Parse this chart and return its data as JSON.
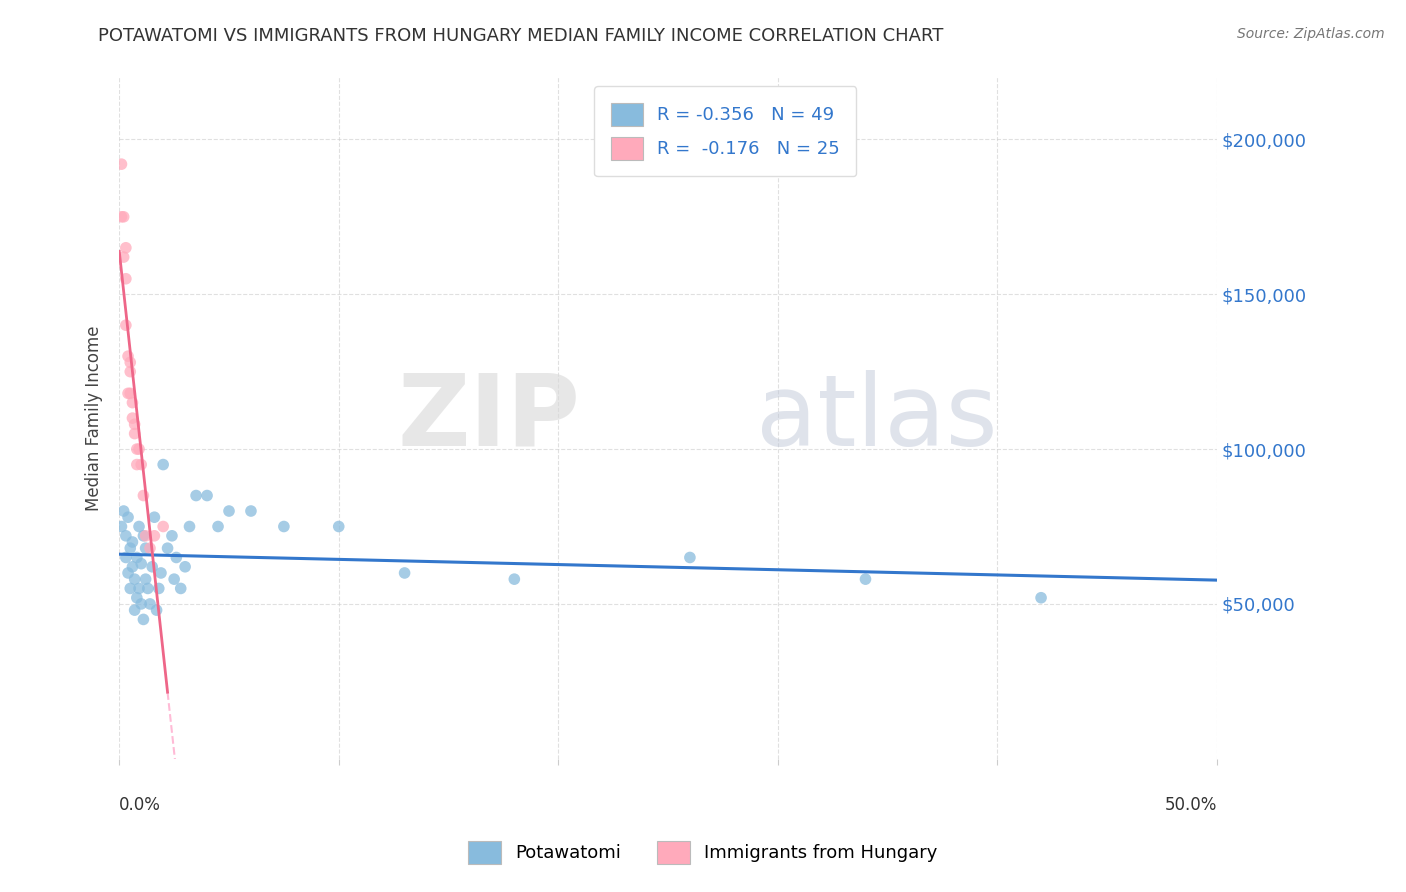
{
  "title": "POTAWATOMI VS IMMIGRANTS FROM HUNGARY MEDIAN FAMILY INCOME CORRELATION CHART",
  "source": "Source: ZipAtlas.com",
  "ylabel": "Median Family Income",
  "ytick_labels": [
    "$50,000",
    "$100,000",
    "$150,000",
    "$200,000"
  ],
  "ytick_values": [
    50000,
    100000,
    150000,
    200000
  ],
  "legend_blue_r": "R = -0.356",
  "legend_blue_n": "N = 49",
  "legend_pink_r": "R = -0.176",
  "legend_pink_n": "N = 25",
  "legend_blue_label": "Potawatomi",
  "legend_pink_label": "Immigrants from Hungary",
  "blue_color": "#88bbdd",
  "pink_color": "#ffaabb",
  "blue_line_color": "#3377cc",
  "pink_line_color": "#ee6688",
  "pink_dash_color": "#ffaacc",
  "watermark_zip": "ZIP",
  "watermark_atlas": "atlas",
  "blue_scatter_x": [
    0.001,
    0.002,
    0.003,
    0.003,
    0.004,
    0.004,
    0.005,
    0.005,
    0.006,
    0.006,
    0.007,
    0.007,
    0.008,
    0.008,
    0.009,
    0.009,
    0.01,
    0.01,
    0.011,
    0.011,
    0.012,
    0.012,
    0.013,
    0.014,
    0.015,
    0.016,
    0.017,
    0.018,
    0.019,
    0.02,
    0.022,
    0.024,
    0.025,
    0.026,
    0.028,
    0.03,
    0.032,
    0.035,
    0.04,
    0.045,
    0.05,
    0.06,
    0.075,
    0.1,
    0.13,
    0.18,
    0.26,
    0.34,
    0.42
  ],
  "blue_scatter_y": [
    75000,
    80000,
    65000,
    72000,
    60000,
    78000,
    55000,
    68000,
    62000,
    70000,
    48000,
    58000,
    52000,
    65000,
    75000,
    55000,
    50000,
    63000,
    72000,
    45000,
    58000,
    68000,
    55000,
    50000,
    62000,
    78000,
    48000,
    55000,
    60000,
    95000,
    68000,
    72000,
    58000,
    65000,
    55000,
    62000,
    75000,
    85000,
    85000,
    75000,
    80000,
    80000,
    75000,
    75000,
    60000,
    58000,
    65000,
    58000,
    52000
  ],
  "pink_scatter_x": [
    0.001,
    0.001,
    0.002,
    0.002,
    0.003,
    0.003,
    0.003,
    0.004,
    0.004,
    0.005,
    0.005,
    0.005,
    0.006,
    0.006,
    0.007,
    0.007,
    0.008,
    0.008,
    0.009,
    0.01,
    0.011,
    0.012,
    0.014,
    0.016,
    0.02
  ],
  "pink_scatter_y": [
    192000,
    175000,
    175000,
    162000,
    155000,
    140000,
    165000,
    130000,
    118000,
    125000,
    128000,
    118000,
    115000,
    110000,
    108000,
    105000,
    100000,
    95000,
    100000,
    95000,
    85000,
    72000,
    68000,
    72000,
    75000
  ],
  "xlim": [
    0.0,
    0.5
  ],
  "ylim": [
    0,
    220000
  ],
  "bg_color": "#ffffff",
  "plot_bg_color": "#ffffff",
  "grid_color": "#cccccc"
}
